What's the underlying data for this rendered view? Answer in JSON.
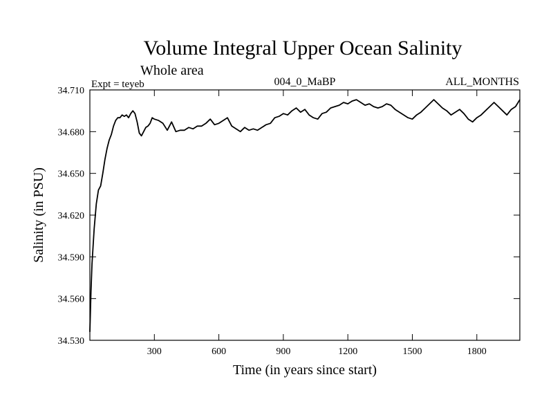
{
  "chart_data": {
    "type": "line",
    "title": "Volume Integral Upper Ocean Salinity",
    "subtitle": "Whole area",
    "experiment_label": "Expt = teyeb",
    "run_label": "004_0_MaBP",
    "season_label": "ALL_MONTHS",
    "xlabel": "Time (in years since start)",
    "ylabel": "Salinity (in PSU)",
    "xlim": [
      0,
      2000
    ],
    "ylim": [
      34.53,
      34.71
    ],
    "x_ticks": [
      300,
      600,
      900,
      1200,
      1500,
      1800
    ],
    "x_tick_labels": [
      "300",
      "600",
      "900",
      "1200",
      "1500",
      "1800"
    ],
    "y_ticks": [
      34.53,
      34.56,
      34.59,
      34.62,
      34.65,
      34.68,
      34.71
    ],
    "y_tick_labels": [
      "34.530",
      "34.560",
      "34.590",
      "34.620",
      "34.650",
      "34.680",
      "34.710"
    ],
    "line_color": "#000000",
    "series": [
      {
        "name": "Salinity",
        "x": [
          0,
          5,
          10,
          20,
          30,
          40,
          50,
          60,
          70,
          80,
          90,
          100,
          110,
          120,
          130,
          140,
          150,
          160,
          170,
          180,
          190,
          200,
          210,
          220,
          230,
          240,
          250,
          260,
          270,
          280,
          290,
          300,
          320,
          340,
          360,
          380,
          400,
          420,
          440,
          460,
          480,
          500,
          520,
          540,
          560,
          580,
          600,
          620,
          640,
          660,
          680,
          700,
          720,
          740,
          760,
          780,
          800,
          820,
          840,
          860,
          880,
          900,
          920,
          940,
          960,
          980,
          1000,
          1020,
          1040,
          1060,
          1080,
          1100,
          1120,
          1140,
          1160,
          1180,
          1200,
          1220,
          1240,
          1260,
          1280,
          1300,
          1320,
          1340,
          1360,
          1380,
          1400,
          1420,
          1440,
          1460,
          1480,
          1500,
          1520,
          1540,
          1560,
          1580,
          1600,
          1620,
          1640,
          1660,
          1680,
          1700,
          1720,
          1740,
          1760,
          1780,
          1800,
          1820,
          1840,
          1860,
          1880,
          1900,
          1920,
          1940,
          1960,
          1980,
          2000
        ],
        "values": [
          34.536,
          34.565,
          34.585,
          34.61,
          34.628,
          34.638,
          34.641,
          34.65,
          34.66,
          34.668,
          34.674,
          34.678,
          34.684,
          34.688,
          34.69,
          34.69,
          34.692,
          34.691,
          34.692,
          34.69,
          34.693,
          34.695,
          34.693,
          34.687,
          34.679,
          34.677,
          34.68,
          34.683,
          34.684,
          34.686,
          34.69,
          34.689,
          34.688,
          34.686,
          34.681,
          34.687,
          34.68,
          34.681,
          34.681,
          34.683,
          34.682,
          34.684,
          34.684,
          34.686,
          34.689,
          34.685,
          34.686,
          34.688,
          34.69,
          34.684,
          34.682,
          34.68,
          34.683,
          34.681,
          34.682,
          34.681,
          34.683,
          34.685,
          34.686,
          34.69,
          34.691,
          34.693,
          34.692,
          34.695,
          34.697,
          34.694,
          34.696,
          34.692,
          34.69,
          34.689,
          34.693,
          34.694,
          34.697,
          34.698,
          34.699,
          34.701,
          34.7,
          34.702,
          34.703,
          34.701,
          34.699,
          34.7,
          34.698,
          34.697,
          34.698,
          34.7,
          34.699,
          34.696,
          34.694,
          34.692,
          34.69,
          34.689,
          34.692,
          34.694,
          34.697,
          34.7,
          34.703,
          34.7,
          34.697,
          34.695,
          34.692,
          34.694,
          34.696,
          34.693,
          34.689,
          34.687,
          34.69,
          34.692,
          34.695,
          34.698,
          34.701,
          34.698,
          34.695,
          34.692,
          34.696,
          34.698,
          34.703
        ]
      }
    ]
  }
}
